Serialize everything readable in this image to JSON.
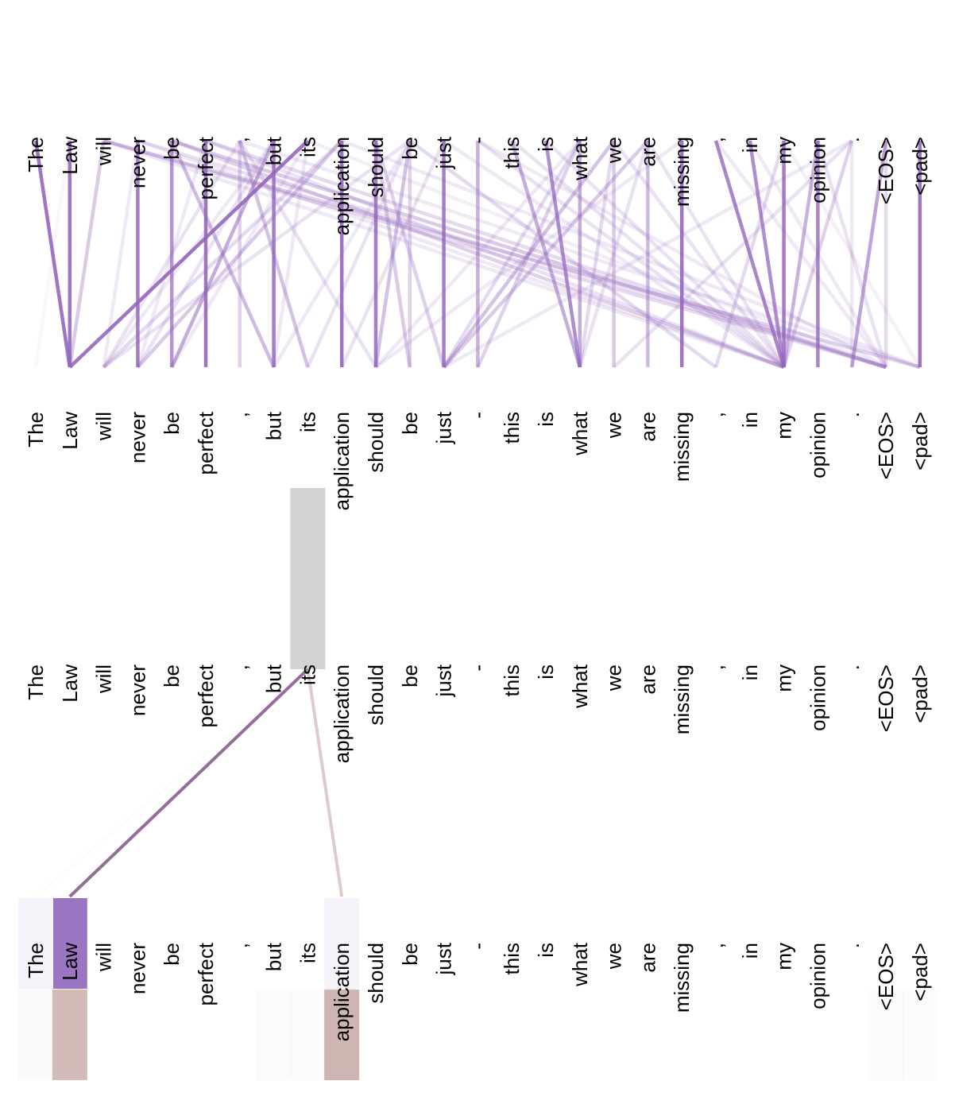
{
  "tokens": [
    "The",
    "Law",
    "will",
    "never",
    "be",
    "perfect",
    ",",
    "but",
    "its",
    "application",
    "should",
    "be",
    "just",
    "-",
    "this",
    "is",
    "what",
    "we",
    "are",
    "missing",
    ",",
    "in",
    "my",
    "opinion",
    ".",
    "<EOS>",
    "<pad>"
  ],
  "colors": {
    "attention": "#9467bd",
    "neuron_view_line": "#8e6a93",
    "secondary_line": "#c8a9a6",
    "selected_box": "#d3d3d3",
    "key_highlight": "#9a75c2",
    "value_highlight": "#c8aaa6"
  },
  "neuron_view": {
    "selected_query_index": 8,
    "attention": [
      {
        "key": 0,
        "weight": 0.03
      },
      {
        "key": 1,
        "weight": 0.97
      },
      {
        "key": 9,
        "weight": 0.6
      }
    ],
    "value_bars": [
      {
        "index": 0,
        "weight": 0.05
      },
      {
        "index": 1,
        "weight": 0.55
      },
      {
        "index": 7,
        "weight": 0.03
      },
      {
        "index": 8,
        "weight": 0.04
      },
      {
        "index": 9,
        "weight": 0.6
      },
      {
        "index": 25,
        "weight": 0.03
      },
      {
        "index": 26,
        "weight": 0.02
      }
    ]
  },
  "attention_view": {
    "links": [
      [
        0,
        1,
        0.9
      ],
      [
        1,
        1,
        0.9
      ],
      [
        2,
        1,
        0.35
      ],
      [
        3,
        3,
        0.85
      ],
      [
        4,
        4,
        0.7
      ],
      [
        5,
        5,
        0.9
      ],
      [
        6,
        6,
        0.3
      ],
      [
        7,
        7,
        0.85
      ],
      [
        8,
        1,
        0.9
      ],
      [
        9,
        9,
        0.9
      ],
      [
        10,
        10,
        0.85
      ],
      [
        11,
        11,
        0.3
      ],
      [
        12,
        12,
        0.85
      ],
      [
        13,
        13,
        0.5
      ],
      [
        14,
        16,
        0.55
      ],
      [
        15,
        16,
        0.75
      ],
      [
        16,
        16,
        0.55
      ],
      [
        17,
        17,
        0.35
      ],
      [
        18,
        18,
        0.45
      ],
      [
        19,
        19,
        0.9
      ],
      [
        21,
        22,
        0.75
      ],
      [
        22,
        22,
        0.85
      ],
      [
        23,
        23,
        0.8
      ],
      [
        24,
        24,
        0.15
      ],
      [
        25,
        25,
        0.25
      ],
      [
        26,
        26,
        0.9
      ],
      [
        20,
        22,
        0.8
      ],
      [
        25,
        24,
        0.6
      ],
      [
        24,
        22,
        0.3
      ],
      [
        23,
        22,
        0.5
      ],
      [
        7,
        4,
        0.55
      ],
      [
        4,
        7,
        0.45
      ],
      [
        6,
        8,
        0.4
      ],
      [
        2,
        26,
        0.3
      ],
      [
        2,
        25,
        0.25
      ],
      [
        3,
        25,
        0.2
      ],
      [
        4,
        25,
        0.35
      ],
      [
        4,
        22,
        0.3
      ],
      [
        5,
        25,
        0.25
      ],
      [
        5,
        22,
        0.2
      ],
      [
        6,
        10,
        0.2
      ],
      [
        3,
        22,
        0.15
      ],
      [
        11,
        10,
        0.4
      ],
      [
        10,
        11,
        0.35
      ],
      [
        12,
        9,
        0.2
      ],
      [
        9,
        3,
        0.35
      ],
      [
        10,
        12,
        0.3
      ],
      [
        11,
        8,
        0.2
      ],
      [
        11,
        20,
        0.25
      ],
      [
        16,
        13,
        0.3
      ],
      [
        17,
        12,
        0.4
      ],
      [
        18,
        12,
        0.35
      ],
      [
        16,
        12,
        0.25
      ],
      [
        17,
        16,
        0.25
      ],
      [
        18,
        16,
        0.2
      ],
      [
        19,
        10,
        0.15
      ],
      [
        14,
        22,
        0.2
      ],
      [
        15,
        22,
        0.2
      ],
      [
        13,
        22,
        0.2
      ],
      [
        17,
        22,
        0.2
      ],
      [
        18,
        22,
        0.2
      ],
      [
        24,
        17,
        0.2
      ],
      [
        24,
        12,
        0.15
      ],
      [
        22,
        20,
        0.25
      ],
      [
        11,
        2,
        0.2
      ],
      [
        7,
        2,
        0.15
      ],
      [
        9,
        2,
        0.25
      ],
      [
        5,
        3,
        0.15
      ],
      [
        6,
        2,
        0.2
      ],
      [
        8,
        4,
        0.15
      ],
      [
        3,
        2,
        0.15
      ],
      [
        1,
        0,
        0.05
      ],
      [
        7,
        3,
        0.2
      ],
      [
        8,
        7,
        0.15
      ],
      [
        11,
        7,
        0.15
      ],
      [
        16,
        10,
        0.15
      ],
      [
        21,
        25,
        0.15
      ],
      [
        23,
        25,
        0.2
      ],
      [
        13,
        25,
        0.15
      ],
      [
        6,
        26,
        0.15
      ],
      [
        9,
        26,
        0.15
      ],
      [
        12,
        22,
        0.15
      ],
      [
        2,
        22,
        0.15
      ],
      [
        20,
        25,
        0.15
      ],
      [
        22,
        26,
        0.1
      ],
      [
        8,
        25,
        0.12
      ]
    ]
  }
}
